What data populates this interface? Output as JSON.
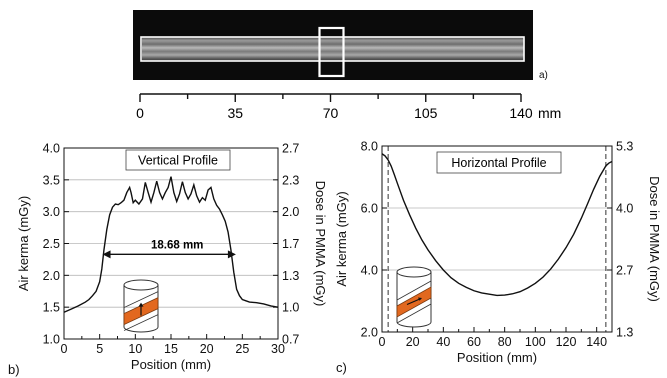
{
  "panel_a": {
    "label": "a)",
    "ruler_ticks": [
      "0",
      "35",
      "70",
      "105",
      "140"
    ],
    "ruler_unit": "mm"
  },
  "chart_data": [
    {
      "type": "line",
      "panel_label": "b)",
      "title": "Vertical Profile",
      "xlabel": "Position (mm)",
      "ylabel": "Air kerma (mGy)",
      "y2label": "Dose in PMMA (mGy)",
      "xlim": [
        0,
        30
      ],
      "ylim": [
        1.0,
        4.0
      ],
      "xticks": [
        "0",
        "5",
        "10",
        "15",
        "20",
        "25",
        "30"
      ],
      "yticks": [
        "1.0",
        "1.5",
        "2.0",
        "2.5",
        "3.0",
        "3.5",
        "4.0"
      ],
      "y2ticks": [
        "0.7",
        "1.0",
        "1.3",
        "1.7",
        "2.0",
        "2.3",
        "2.7"
      ],
      "grid_y": true,
      "annotation": "18.68 mm",
      "fwhm_range": [
        5.4,
        24.1
      ],
      "fwhm_level": 2.33,
      "series": [
        {
          "x": [
            0,
            1,
            2,
            3,
            3.5,
            4,
            4.5,
            5,
            5.3,
            5.6,
            6,
            6.4,
            6.8,
            7.2,
            7.6,
            8,
            8.4,
            8.8,
            9.2,
            9.4,
            9.7,
            10,
            10.5,
            11,
            11.4,
            11.8,
            12.2,
            12.6,
            13,
            13.4,
            13.8,
            14.2,
            14.6,
            15,
            15.4,
            15.8,
            16.2,
            16.6,
            17,
            17.4,
            17.8,
            18.2,
            18.6,
            19,
            19.4,
            19.8,
            20.2,
            20.6,
            21,
            21.4,
            21.8,
            22.2,
            22.6,
            23,
            23.4,
            23.8,
            24.2,
            24.6,
            25,
            25.5,
            26,
            27,
            28,
            29,
            30
          ],
          "y": [
            1.42,
            1.47,
            1.52,
            1.58,
            1.62,
            1.68,
            1.75,
            1.9,
            2.1,
            2.4,
            2.72,
            2.95,
            3.07,
            3.12,
            3.11,
            3.14,
            3.18,
            3.3,
            3.38,
            3.3,
            3.14,
            3.18,
            3.12,
            3.2,
            3.46,
            3.3,
            3.15,
            3.3,
            3.48,
            3.3,
            3.2,
            3.3,
            3.38,
            3.55,
            3.3,
            3.16,
            3.28,
            3.47,
            3.3,
            3.2,
            3.28,
            3.42,
            3.25,
            3.15,
            3.22,
            3.18,
            3.34,
            3.38,
            3.2,
            3.1,
            3.04,
            2.95,
            2.85,
            2.68,
            2.4,
            2.05,
            1.78,
            1.68,
            1.62,
            1.6,
            1.58,
            1.57,
            1.55,
            1.52,
            1.5
          ]
        }
      ]
    },
    {
      "type": "line",
      "panel_label": "c)",
      "title": "Horizontal Profile",
      "xlabel": "Position (mm)",
      "ylabel": "Air kerma (mGy)",
      "y2label": "Dose in PMMA (mGy)",
      "xlim": [
        0,
        150
      ],
      "ylim": [
        2.0,
        8.0
      ],
      "xticks": [
        "0",
        "20",
        "40",
        "60",
        "80",
        "100",
        "120",
        "140"
      ],
      "yticks": [
        "2.0",
        "4.0",
        "6.0",
        "8.0"
      ],
      "y2ticks": [
        "1.3",
        "2.7",
        "4.0",
        "5.3"
      ],
      "grid_y": true,
      "dashed_x": [
        4,
        146
      ],
      "series": [
        {
          "x": [
            0,
            2,
            4,
            6,
            8,
            10,
            14,
            18,
            22,
            26,
            30,
            35,
            40,
            45,
            50,
            55,
            60,
            65,
            70,
            75,
            80,
            85,
            90,
            95,
            100,
            105,
            110,
            115,
            120,
            125,
            130,
            134,
            138,
            142,
            146,
            148,
            150
          ],
          "y": [
            7.75,
            7.68,
            7.55,
            7.35,
            7.08,
            6.8,
            6.25,
            5.78,
            5.35,
            4.97,
            4.65,
            4.3,
            4.0,
            3.75,
            3.57,
            3.44,
            3.33,
            3.26,
            3.22,
            3.18,
            3.19,
            3.23,
            3.3,
            3.42,
            3.57,
            3.77,
            4.03,
            4.35,
            4.72,
            5.15,
            5.67,
            6.13,
            6.6,
            7.02,
            7.36,
            7.45,
            7.5
          ]
        }
      ]
    }
  ]
}
